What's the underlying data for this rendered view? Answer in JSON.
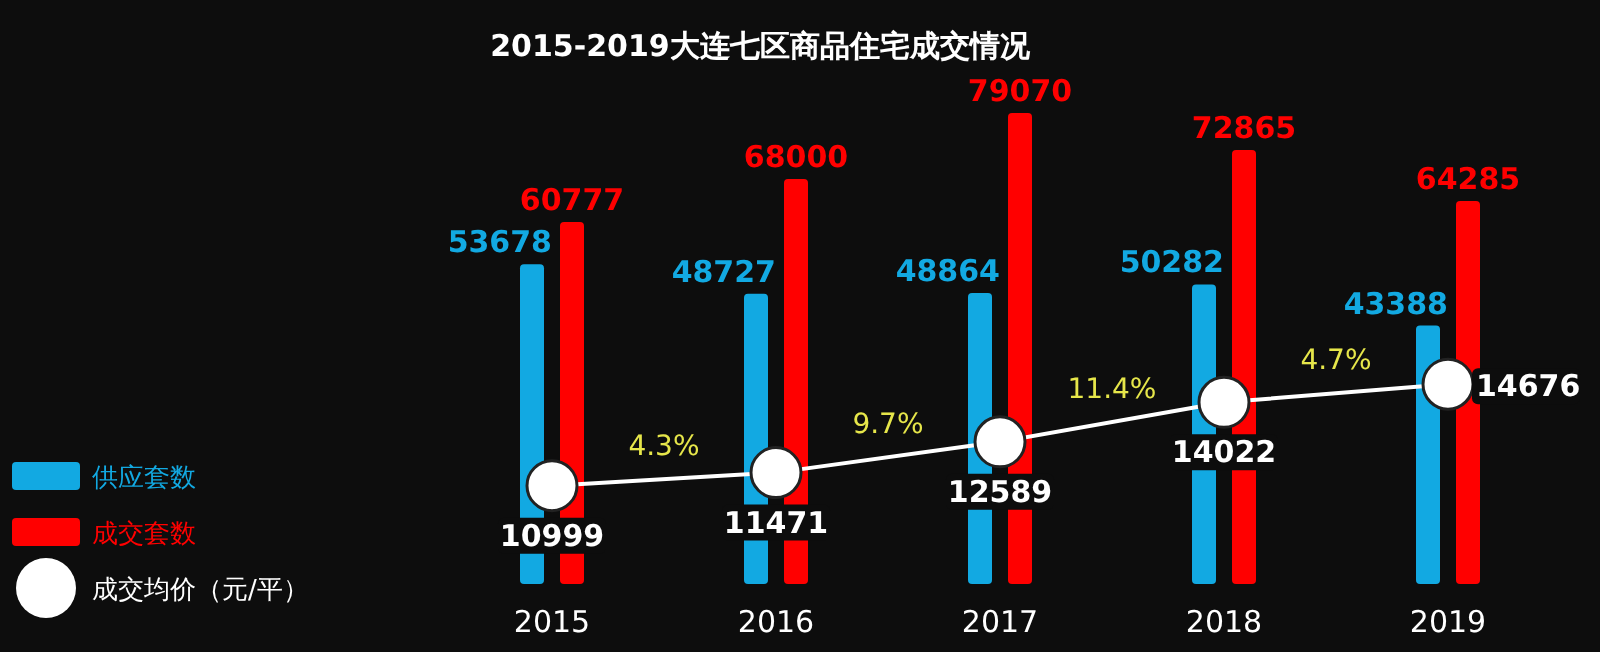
{
  "chart_data": {
    "type": "bar",
    "title": "2015-2019大连七区商品住宅成交情况",
    "categories": [
      "2015",
      "2016",
      "2017",
      "2018",
      "2019"
    ],
    "series": [
      {
        "name": "供应套数",
        "color": "#12a9e2",
        "values": [
          53678,
          48727,
          48864,
          50282,
          43388
        ]
      },
      {
        "name": "成交套数",
        "color": "#ff0000",
        "values": [
          60777,
          68000,
          79070,
          72865,
          64285
        ]
      },
      {
        "name": "成交均价（元/平）",
        "color": "#ffffff",
        "type": "line",
        "axis": "y2",
        "marker": "circle",
        "values": [
          10999,
          11471,
          12589,
          14022,
          14676
        ]
      }
    ],
    "annotations": [
      "4.3%",
      "9.7%",
      "11.4%",
      "4.7%"
    ],
    "data_labels": true,
    "legend": "bottom left"
  }
}
